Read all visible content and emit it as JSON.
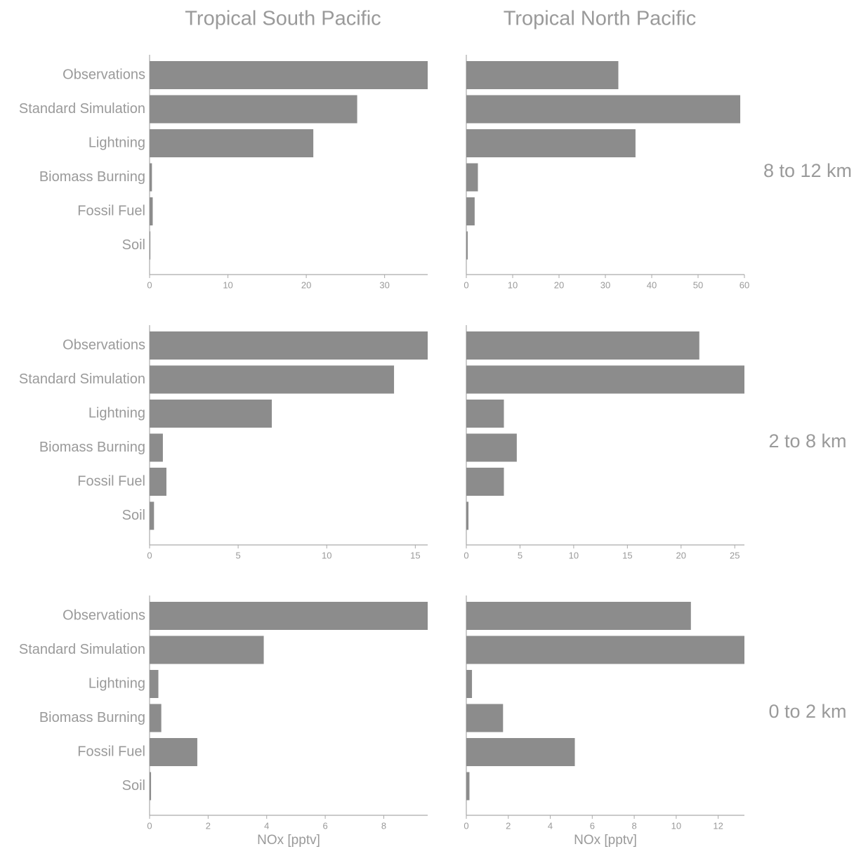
{
  "chart_data": [
    {
      "type": "barh",
      "title": "Tropical South Pacific",
      "categories": [
        "Observations",
        "Standard Simulation",
        "Lightning",
        "Biomass Burning",
        "Fossil Fuel",
        "Soil"
      ],
      "values": [
        35.5,
        26.5,
        20.9,
        0.3,
        0.4,
        0.1
      ],
      "color": "#8c8c8c",
      "xlim": [
        0,
        35.5
      ],
      "xticks": [
        0,
        10,
        20,
        30
      ]
    },
    {
      "type": "barh",
      "title": "Tropical North Pacific",
      "row_label": "8 to 12 km",
      "values": [
        32.8,
        59.1,
        36.5,
        2.5,
        1.8,
        0.3
      ],
      "color": "#8c8c8c",
      "xlim": [
        0,
        60
      ],
      "xticks": [
        0,
        10,
        20,
        30,
        40,
        50,
        60
      ]
    },
    {
      "type": "barh",
      "categories": [
        "Observations",
        "Standard Simulation",
        "Lightning",
        "Biomass Burning",
        "Fossil Fuel",
        "Soil"
      ],
      "values": [
        15.7,
        13.8,
        6.9,
        0.75,
        0.95,
        0.25
      ],
      "color": "#8c8c8c",
      "xlim": [
        0,
        15.7
      ],
      "xticks": [
        0,
        5,
        10,
        15
      ]
    },
    {
      "type": "barh",
      "row_label": "2 to 8 km",
      "values": [
        21.7,
        25.9,
        3.5,
        4.7,
        3.5,
        0.2
      ],
      "color": "#8c8c8c",
      "xlim": [
        0,
        25.9
      ],
      "xticks": [
        0,
        5,
        10,
        15,
        20,
        25
      ]
    },
    {
      "type": "barh",
      "xlabel": "NOx [pptv]",
      "categories": [
        "Observations",
        "Standard Simulation",
        "Lightning",
        "Biomass Burning",
        "Fossil Fuel",
        "Soil"
      ],
      "values": [
        9.5,
        3.9,
        0.3,
        0.4,
        1.63,
        0.05
      ],
      "color": "#8c8c8c",
      "xlim": [
        0,
        9.5
      ],
      "xticks": [
        0,
        2,
        4,
        6,
        8
      ]
    },
    {
      "type": "barh",
      "row_label": "0 to 2 km",
      "xlabel": "NOx [pptv]",
      "values": [
        10.7,
        13.25,
        0.27,
        1.75,
        5.17,
        0.15
      ],
      "color": "#8c8c8c",
      "xlim": [
        0,
        13.25
      ],
      "xticks": [
        0,
        2,
        4,
        6,
        8,
        10,
        12
      ]
    }
  ]
}
